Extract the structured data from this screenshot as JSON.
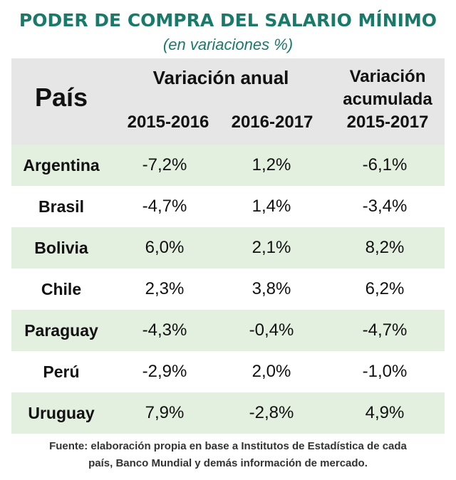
{
  "title": "PODER DE COMPRA DEL SALARIO MÍNIMO",
  "subtitle": "(en variaciones %)",
  "header": {
    "country": "País",
    "annual": "Variación anual",
    "year1": "2015-2016",
    "year2": "2016-2017",
    "cumulative_line1": "Variación",
    "cumulative_line2": "acumulada",
    "cumulative_line3": "2015-2017"
  },
  "rows": [
    {
      "country": "Argentina",
      "v1": "-7,2%",
      "v2": "1,2%",
      "v3": "-6,1%"
    },
    {
      "country": "Brasil",
      "v1": "-4,7%",
      "v2": "1,4%",
      "v3": "-3,4%"
    },
    {
      "country": "Bolivia",
      "v1": "6,0%",
      "v2": "2,1%",
      "v3": "8,2%"
    },
    {
      "country": "Chile",
      "v1": "2,3%",
      "v2": "3,8%",
      "v3": "6,2%"
    },
    {
      "country": "Paraguay",
      "v1": "-4,3%",
      "v2": "-0,4%",
      "v3": "-4,7%"
    },
    {
      "country": "Perú",
      "v1": "-2,9%",
      "v2": "2,0%",
      "v3": "-1,0%"
    },
    {
      "country": "Uruguay",
      "v1": "7,9%",
      "v2": "-2,8%",
      "v3": "4,9%"
    }
  ],
  "source_line1": "Fuente: elaboración propia en base a Institutos de Estadística de cada",
  "source_line2": "país, Banco Mundial y demás información de mercado.",
  "colors": {
    "title": "#1a7a6a",
    "header_bg": "#e6e6e6",
    "alt_row_bg": "#e3efdf"
  }
}
